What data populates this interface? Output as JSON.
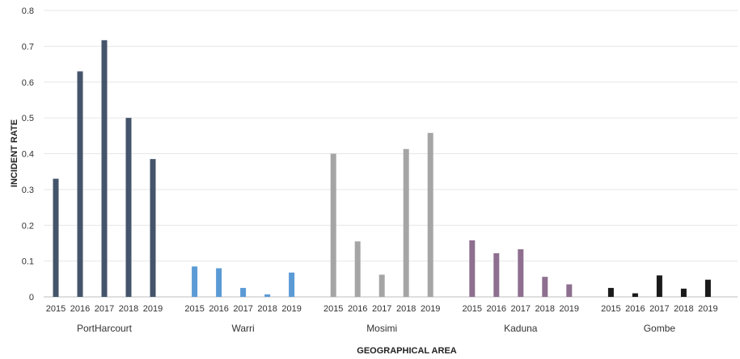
{
  "chart_data": {
    "type": "bar",
    "title": "",
    "xlabel": "GEOGRAPHICAL AREA",
    "ylabel": "INCIDENT RATE",
    "ylim": [
      0,
      0.8
    ],
    "yticks": [
      "0",
      "0.1",
      "0.2",
      "0.3",
      "0.4",
      "0.5",
      "0.6",
      "0.7",
      "0.8"
    ],
    "grid": true,
    "legend": "none",
    "years": [
      "2015",
      "2016",
      "2017",
      "2018",
      "2019"
    ],
    "groups": [
      {
        "name": "PortHarcourt",
        "color": "#44546a",
        "values": [
          0.33,
          0.63,
          0.717,
          0.5,
          0.385
        ]
      },
      {
        "name": "Warri",
        "color": "#5b9bd5",
        "values": [
          0.085,
          0.08,
          0.025,
          0.007,
          0.068
        ]
      },
      {
        "name": "Mosimi",
        "color": "#a5a5a5",
        "values": [
          0.4,
          0.155,
          0.062,
          0.413,
          0.458
        ]
      },
      {
        "name": "Kaduna",
        "color": "#8e6f8f",
        "values": [
          0.158,
          0.122,
          0.133,
          0.056,
          0.035
        ]
      },
      {
        "name": "Gombe",
        "color": "#1a1a1a",
        "values": [
          0.025,
          0.01,
          0.06,
          0.023,
          0.048
        ]
      }
    ]
  }
}
